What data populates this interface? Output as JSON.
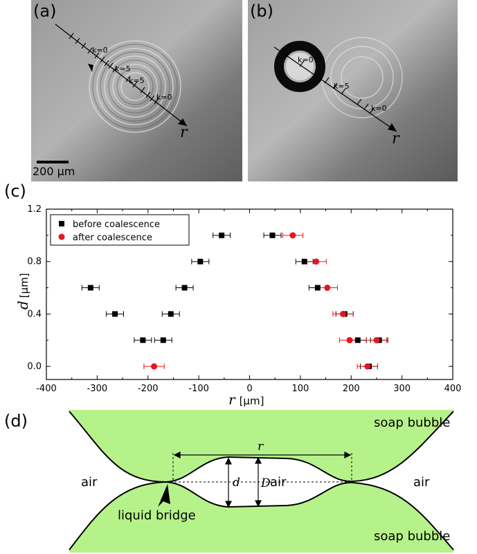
{
  "panels": {
    "a": {
      "label": "(a)",
      "scale_bar_label": "200 µm",
      "marker_labels": [
        "k=0",
        "k=5",
        "k=5",
        "k=0"
      ],
      "axis_symbol": "r"
    },
    "b": {
      "label": "(b)",
      "marker_labels": [
        "k=0",
        "k=5",
        "k=0"
      ],
      "axis_symbol": "r"
    },
    "c": {
      "label": "(c)"
    },
    "d": {
      "label": "(d)",
      "top_bubble": "soap bubble",
      "bottom_bubble": "soap bubble",
      "air_left": "air",
      "air_center": "air",
      "air_right": "air",
      "liquid_bridge": "liquid bridge",
      "var_r": "r",
      "var_d": "d",
      "var_D": "D",
      "fill_color": "#b6f28a"
    }
  },
  "chart_data": {
    "type": "scatter",
    "xlabel": "r",
    "xlabel_unit": "[µm]",
    "ylabel": "d",
    "ylabel_unit": "[µm]",
    "xlim": [
      -400,
      400
    ],
    "ylim": [
      -0.1,
      1.2
    ],
    "xticks": [
      -400,
      -300,
      -200,
      -100,
      0,
      100,
      200,
      300,
      400
    ],
    "yticks": [
      0.0,
      0.4,
      0.8,
      1.2
    ],
    "ytick_labels": [
      "0.0",
      "0.4",
      "0.8",
      "1.2"
    ],
    "minor_yticks": [
      0.2,
      0.6,
      1.0
    ],
    "legend_position": "top-left",
    "grid": false,
    "series": [
      {
        "name": "before coalescence",
        "marker": "square",
        "color": "#000000",
        "points": [
          {
            "x": -55,
            "y": 1.0,
            "xerr": 17
          },
          {
            "x": 45,
            "y": 1.0,
            "xerr": 17
          },
          {
            "x": -97,
            "y": 0.8,
            "xerr": 17
          },
          {
            "x": 108,
            "y": 0.8,
            "xerr": 17
          },
          {
            "x": -313,
            "y": 0.6,
            "xerr": 17
          },
          {
            "x": -128,
            "y": 0.6,
            "xerr": 17
          },
          {
            "x": 134,
            "y": 0.6,
            "xerr": 17
          },
          {
            "x": -265,
            "y": 0.4,
            "xerr": 17
          },
          {
            "x": -155,
            "y": 0.4,
            "xerr": 17
          },
          {
            "x": 187,
            "y": 0.4,
            "xerr": 17
          },
          {
            "x": -210,
            "y": 0.2,
            "xerr": 17
          },
          {
            "x": -170,
            "y": 0.2,
            "xerr": 17
          },
          {
            "x": 213,
            "y": 0.2,
            "xerr": 17
          },
          {
            "x": 255,
            "y": 0.2,
            "xerr": 17
          },
          {
            "x": 235,
            "y": 0.0,
            "xerr": 17
          }
        ]
      },
      {
        "name": "after coalescence",
        "marker": "circle",
        "color": "#e8141d",
        "points": [
          {
            "x": 85,
            "y": 1.0,
            "xerr": 20
          },
          {
            "x": 131,
            "y": 0.8,
            "xerr": 20
          },
          {
            "x": 153,
            "y": 0.6,
            "xerr": 20
          },
          {
            "x": 184,
            "y": 0.4,
            "xerr": 20
          },
          {
            "x": 197,
            "y": 0.2,
            "xerr": 20
          },
          {
            "x": 250,
            "y": 0.2,
            "xerr": 20
          },
          {
            "x": -188,
            "y": 0.0,
            "xerr": 20
          },
          {
            "x": 232,
            "y": 0.0,
            "xerr": 20
          }
        ]
      }
    ]
  }
}
